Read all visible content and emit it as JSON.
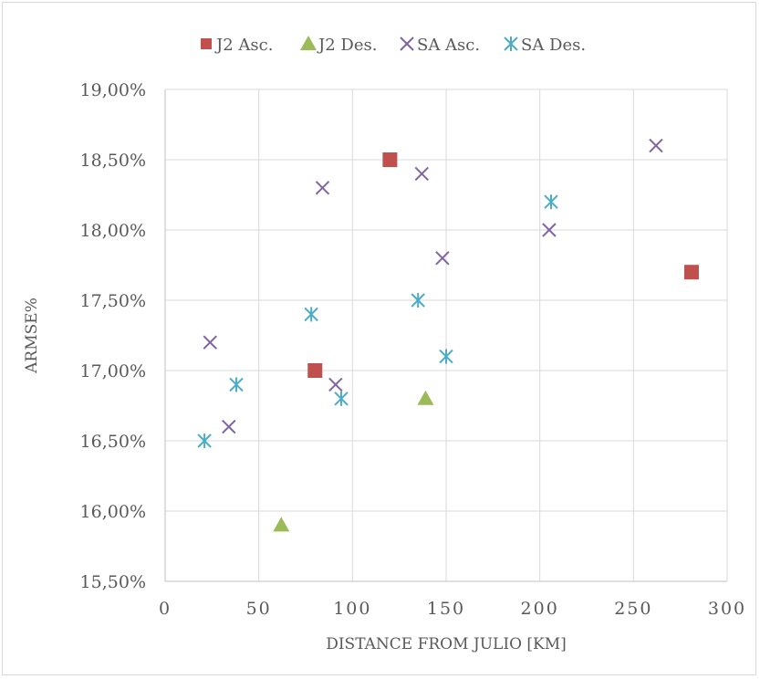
{
  "chart_data": {
    "type": "scatter",
    "title": "",
    "xlabel": "DISTANCE FROM JULIO [KM]",
    "ylabel": "ARMSE%",
    "xlim": [
      0,
      300
    ],
    "ylim": [
      15.5,
      19.0
    ],
    "x_ticks": [
      0,
      50,
      100,
      150,
      200,
      250,
      300
    ],
    "x_tick_labels": [
      "0",
      "50",
      "100",
      "150",
      "200",
      "250",
      "300"
    ],
    "y_ticks": [
      15.5,
      16.0,
      16.5,
      17.0,
      17.5,
      18.0,
      18.5,
      19.0
    ],
    "y_tick_labels": [
      "15,50%",
      "16,00%",
      "16,50%",
      "17,00%",
      "17,50%",
      "18,00%",
      "18,50%",
      "19,00%"
    ],
    "grid": true,
    "legend_position": "top",
    "series": [
      {
        "name": "J2 Asc.",
        "marker": "square",
        "color": "#c0504d",
        "points": [
          {
            "x": 80,
            "y": 17.0
          },
          {
            "x": 120,
            "y": 18.5
          },
          {
            "x": 281,
            "y": 17.7
          }
        ]
      },
      {
        "name": "J2 Des.",
        "marker": "triangle",
        "color": "#9bbb59",
        "points": [
          {
            "x": 62,
            "y": 15.9
          },
          {
            "x": 139,
            "y": 16.8
          }
        ]
      },
      {
        "name": "SA Asc.",
        "marker": "x",
        "color": "#8064a2",
        "points": [
          {
            "x": 24,
            "y": 17.2
          },
          {
            "x": 34,
            "y": 16.6
          },
          {
            "x": 84,
            "y": 18.3
          },
          {
            "x": 91,
            "y": 16.9
          },
          {
            "x": 137,
            "y": 18.4
          },
          {
            "x": 148,
            "y": 17.8
          },
          {
            "x": 205,
            "y": 18.0
          },
          {
            "x": 262,
            "y": 18.6
          }
        ]
      },
      {
        "name": "SA Des.",
        "marker": "star",
        "color": "#4bacc6",
        "points": [
          {
            "x": 21,
            "y": 16.5
          },
          {
            "x": 38,
            "y": 16.9
          },
          {
            "x": 78,
            "y": 17.4
          },
          {
            "x": 94,
            "y": 16.8
          },
          {
            "x": 135,
            "y": 17.5
          },
          {
            "x": 150,
            "y": 17.1
          },
          {
            "x": 206,
            "y": 18.2
          }
        ]
      }
    ]
  }
}
